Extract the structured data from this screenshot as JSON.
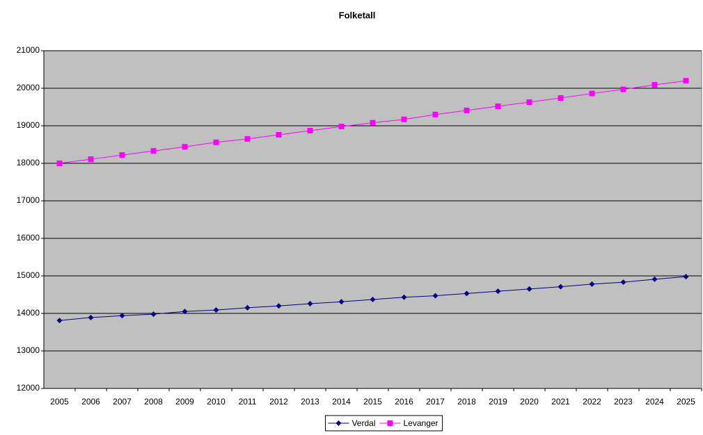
{
  "chart_data": {
    "type": "line",
    "title": "Folketall",
    "categories": [
      "2005",
      "2006",
      "2007",
      "2008",
      "2009",
      "2010",
      "2011",
      "2012",
      "2013",
      "2014",
      "2015",
      "2016",
      "2017",
      "2018",
      "2019",
      "2020",
      "2021",
      "2022",
      "2023",
      "2024",
      "2025"
    ],
    "series": [
      {
        "name": "Verdal",
        "color": "#000080",
        "marker": "diamond",
        "values": [
          13810,
          13890,
          13940,
          13980,
          14050,
          14090,
          14150,
          14200,
          14260,
          14310,
          14370,
          14430,
          14470,
          14530,
          14590,
          14650,
          14710,
          14780,
          14830,
          14910,
          14980
        ]
      },
      {
        "name": "Levanger",
        "color": "#ff00ff",
        "marker": "square",
        "values": [
          18000,
          18110,
          18220,
          18330,
          18440,
          18560,
          18650,
          18760,
          18870,
          18980,
          19080,
          19170,
          19300,
          19410,
          19520,
          19630,
          19740,
          19860,
          19970,
          20090,
          20200
        ]
      }
    ],
    "ylim": [
      12000,
      21000
    ],
    "yticks": [
      12000,
      13000,
      14000,
      15000,
      16000,
      17000,
      18000,
      19000,
      20000,
      21000
    ],
    "grid": true,
    "legend": "bottom",
    "background": "#c0c0c0"
  }
}
